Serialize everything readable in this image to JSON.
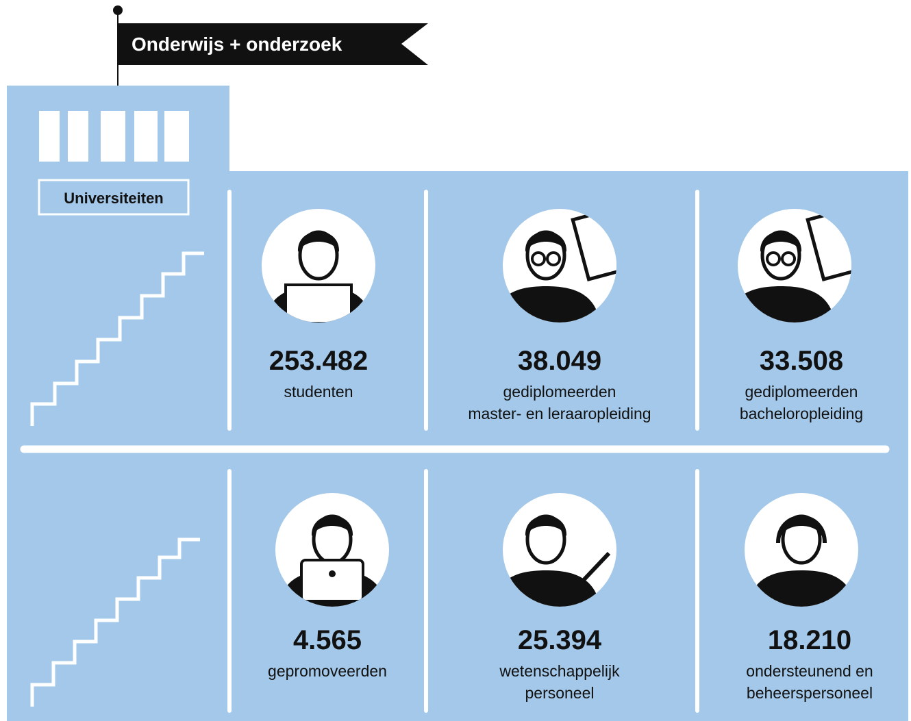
{
  "header": {
    "title": "Onderwijs + onderzoek",
    "label": "Universiteiten"
  },
  "stats": [
    {
      "value": "253.482",
      "lines": [
        "studenten"
      ]
    },
    {
      "value": "38.049",
      "lines": [
        "gediplomeerden",
        "master- en leraaropleiding"
      ]
    },
    {
      "value": "33.508",
      "lines": [
        "gediplomeerden",
        "bacheloropleiding"
      ]
    },
    {
      "value": "4.565",
      "lines": [
        "gepromoveerden"
      ]
    },
    {
      "value": "25.394",
      "lines": [
        "wetenschappelijk",
        "personeel"
      ]
    },
    {
      "value": "18.210",
      "lines": [
        "ondersteunend en",
        "beheerspersoneel"
      ]
    }
  ]
}
